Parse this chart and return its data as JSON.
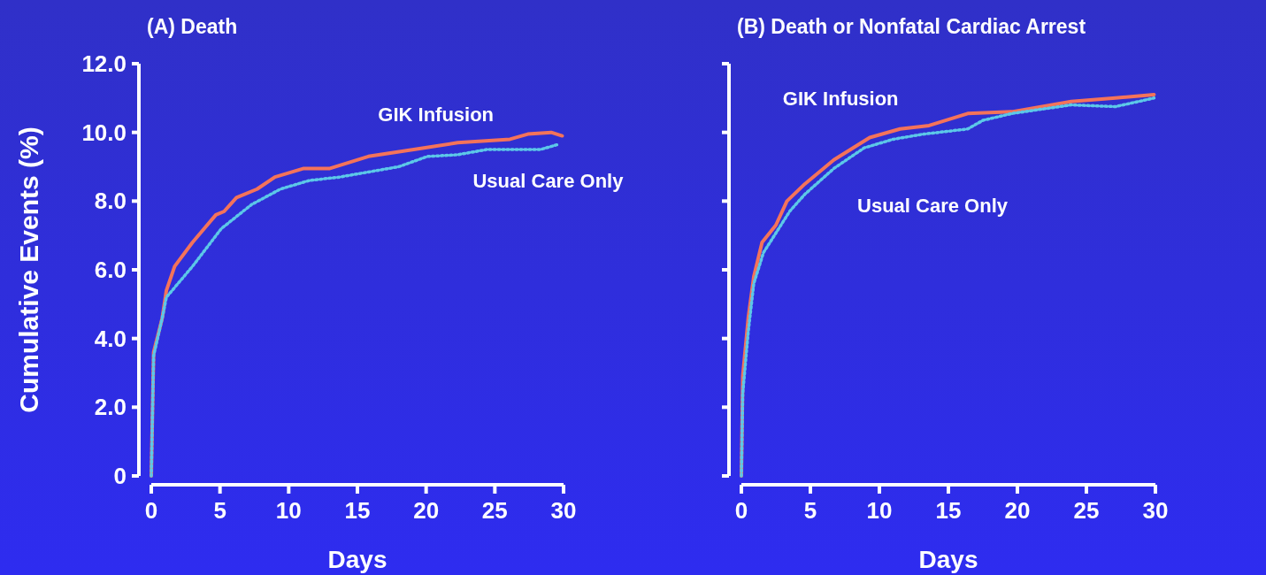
{
  "chart_data": [
    {
      "type": "line",
      "title": "(A) Death",
      "xlabel": "Days",
      "ylabel": "Cumulative Events (%)",
      "xlim": [
        0,
        30
      ],
      "xticks": [
        0,
        5,
        10,
        15,
        20,
        25,
        30
      ],
      "ylim": [
        0,
        12
      ],
      "yticks": [
        0,
        {
          "value": 2,
          "label": "2.0"
        },
        {
          "value": 4,
          "label": "4.0"
        },
        {
          "value": 6,
          "label": "6.0"
        },
        {
          "value": 8,
          "label": "8.0"
        },
        {
          "value": 10,
          "label": "10.0"
        },
        {
          "value": 12,
          "label": "12.0"
        }
      ],
      "grid": false,
      "series": [
        {
          "name": "GIK Infusion",
          "color": "#f4735a",
          "line_style": "solid",
          "x": [
            0,
            0.17,
            0.8,
            1.1,
            1.7,
            3.0,
            4.7,
            5.3,
            6.2,
            7.7,
            9.0,
            11.1,
            13.0,
            15.8,
            19.1,
            22.3,
            26.1,
            27.4,
            29.1,
            29.9
          ],
          "values": [
            0,
            3.6,
            4.6,
            5.4,
            6.1,
            6.8,
            7.6,
            7.7,
            8.1,
            8.35,
            8.7,
            8.95,
            8.95,
            9.3,
            9.5,
            9.7,
            9.8,
            9.95,
            10.0,
            9.9
          ]
        },
        {
          "name": "Usual Care Only",
          "color": "#5cc8e8",
          "line_style": "dotted",
          "x": [
            0,
            0.17,
            0.8,
            1.1,
            3.0,
            5.1,
            7.3,
            9.4,
            11.5,
            13.7,
            18.0,
            20.1,
            22.3,
            24.4,
            28.3,
            29.6
          ],
          "values": [
            0,
            3.5,
            4.6,
            5.2,
            6.1,
            7.2,
            7.9,
            8.35,
            8.6,
            8.7,
            9.0,
            9.3,
            9.35,
            9.5,
            9.5,
            9.65
          ]
        }
      ]
    },
    {
      "type": "line",
      "title": "(B) Death or Nonfatal Cardiac Arrest",
      "xlabel": "Days",
      "xlim": [
        0,
        30
      ],
      "xticks": [
        0,
        5,
        10,
        15,
        20,
        25,
        30
      ],
      "ylim": [
        0,
        12
      ],
      "yticks": [
        {
          "value": 0,
          "label": null
        },
        {
          "value": 2,
          "label": null
        },
        {
          "value": 4,
          "label": null
        },
        {
          "value": 6,
          "label": null
        },
        {
          "value": 8,
          "label": null
        },
        {
          "value": 10,
          "label": null
        },
        {
          "value": 12,
          "label": null
        }
      ],
      "tick_labels": "x",
      "grid": false,
      "series": [
        {
          "name": "GIK Infusion",
          "color": "#f4735a",
          "line_style": "solid",
          "x": [
            0,
            0.1,
            0.5,
            0.9,
            1.5,
            2.5,
            3.3,
            4.6,
            6.7,
            9.3,
            11.5,
            13.6,
            16.4,
            19.6,
            23.9,
            27.1,
            29.9
          ],
          "values": [
            0,
            2.9,
            4.6,
            5.8,
            6.8,
            7.3,
            8.0,
            8.5,
            9.2,
            9.85,
            10.1,
            10.2,
            10.55,
            10.6,
            10.9,
            11.0,
            11.1
          ]
        },
        {
          "name": "Usual Care Only",
          "color": "#5cc8e8",
          "line_style": "dotted",
          "x": [
            0,
            0.1,
            0.5,
            0.9,
            1.6,
            3.5,
            4.6,
            6.7,
            8.9,
            11.0,
            13.2,
            16.4,
            17.5,
            19.6,
            23.9,
            27.1,
            29.9
          ],
          "values": [
            0,
            2.4,
            4.2,
            5.6,
            6.5,
            7.7,
            8.2,
            8.95,
            9.55,
            9.8,
            9.95,
            10.1,
            10.35,
            10.55,
            10.8,
            10.75,
            11.0
          ]
        }
      ]
    }
  ]
}
